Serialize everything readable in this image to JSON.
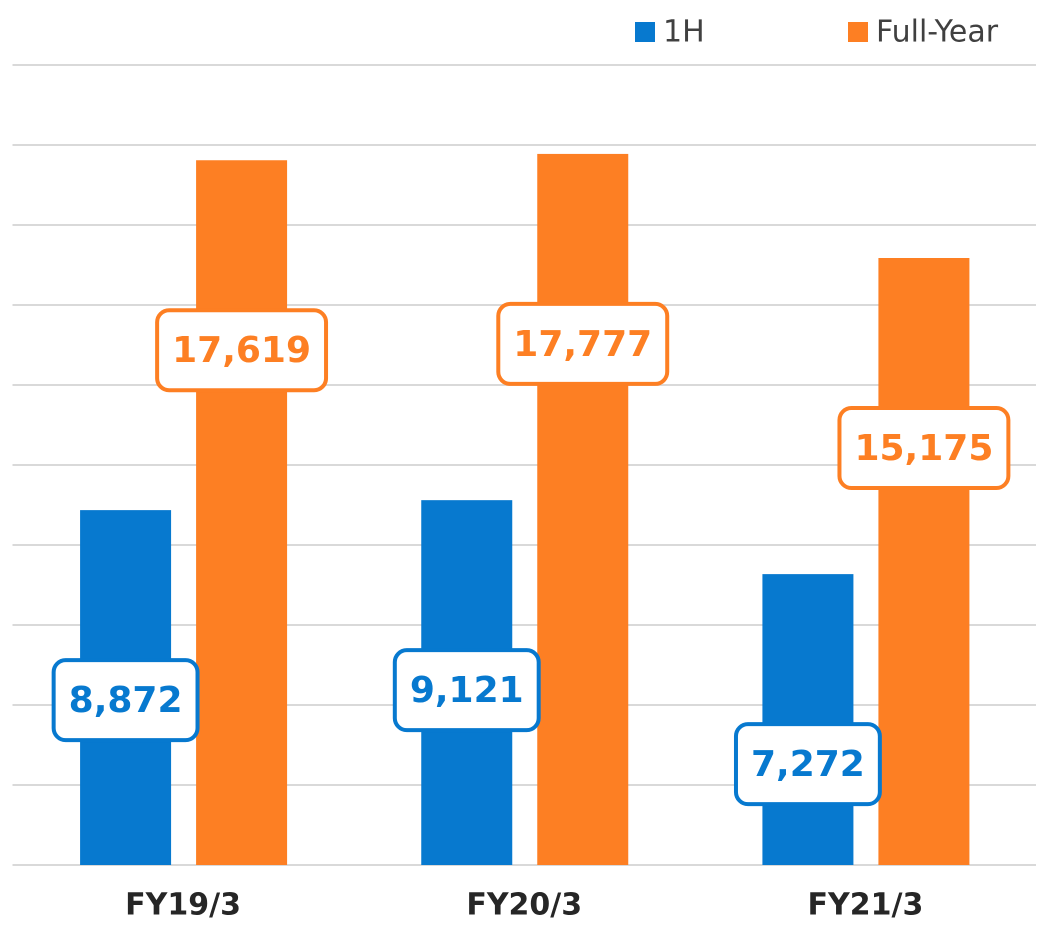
{
  "chart_data": {
    "type": "bar",
    "categories": [
      "FY19/3",
      "FY20/3",
      "FY21/3"
    ],
    "series": [
      {
        "name": "1H",
        "color": "#0779cf",
        "values": [
          8872,
          9121,
          7272
        ],
        "value_labels": [
          "8,872",
          "9,121",
          "7,272"
        ]
      },
      {
        "name": "Full-Year",
        "color": "#fd7f23",
        "values": [
          17619,
          17777,
          15175
        ],
        "value_labels": [
          "17,619",
          "17,777",
          "15,175"
        ]
      }
    ],
    "ylim": [
      0,
      20000
    ],
    "yticks": [
      0,
      2000,
      4000,
      6000,
      8000,
      10000,
      12000,
      14000,
      16000,
      18000,
      20000
    ],
    "grid": true
  }
}
